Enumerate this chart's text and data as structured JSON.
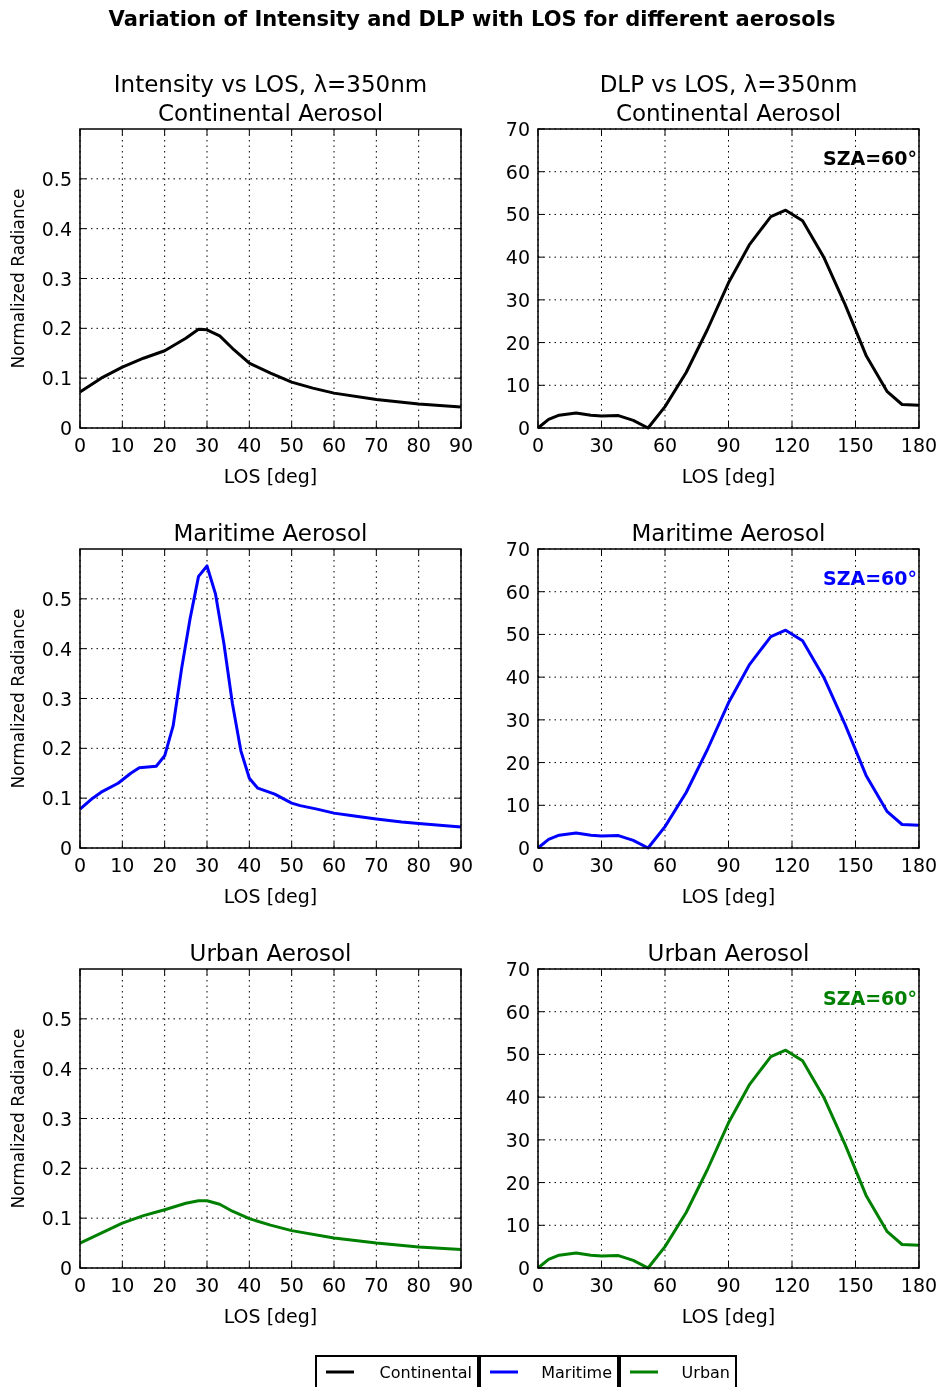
{
  "chart_data": [
    {
      "type": "line",
      "title": "Intensity vs LOS, λ=350nm",
      "subtitle": "Continental Aerosol",
      "xlabel": "LOS [deg]",
      "ylabel": "Normalized Radiance",
      "annotations": [
        "Variation of Intensity and DLP with LOS for different aerosols"
      ],
      "xlim": [
        0,
        90
      ],
      "xticks": [
        0,
        10,
        20,
        30,
        40,
        50,
        60,
        70,
        80,
        90
      ],
      "ylim": [
        0,
        0.6
      ],
      "yticks": [
        0,
        0.1,
        0.2,
        0.3,
        0.4,
        0.5
      ],
      "grid": true,
      "legend": "bottom",
      "series": [
        {
          "name": "Continental",
          "color": "#000000",
          "x": [
            0,
            5,
            10,
            15,
            20,
            25,
            28,
            30,
            33,
            36,
            40,
            45,
            50,
            55,
            60,
            70,
            80,
            90
          ],
          "values": [
            0.072,
            0.1,
            0.122,
            0.14,
            0.155,
            0.18,
            0.198,
            0.197,
            0.185,
            0.16,
            0.13,
            0.11,
            0.092,
            0.08,
            0.07,
            0.057,
            0.048,
            0.042
          ]
        }
      ]
    },
    {
      "type": "line",
      "title": "DLP vs LOS, λ=350nm",
      "subtitle": "Continental Aerosol",
      "xlabel": "LOS [deg]",
      "annotations": [
        "SZA=60°"
      ],
      "xlim": [
        0,
        180
      ],
      "xticks": [
        0,
        30,
        60,
        90,
        120,
        150,
        180
      ],
      "ylim": [
        0,
        70
      ],
      "yticks": [
        0,
        10,
        20,
        30,
        40,
        50,
        60,
        70
      ],
      "grid": true,
      "series": [
        {
          "color": "#000000",
          "x": [
            0,
            5,
            10,
            18,
            25,
            30,
            38,
            45,
            52,
            60,
            70,
            80,
            90,
            100,
            110,
            117,
            125,
            135,
            145,
            155,
            165,
            172,
            180
          ],
          "values": [
            0,
            2,
            3,
            3.5,
            3,
            2.8,
            2.9,
            1.8,
            0,
            5,
            13,
            23,
            34,
            43,
            49.5,
            51,
            48.5,
            40,
            29,
            17,
            8.5,
            5.5,
            5.3
          ]
        }
      ]
    },
    {
      "type": "line",
      "title": "Maritime Aerosol",
      "xlabel": "LOS [deg]",
      "ylabel": "Normalized Radiance",
      "xlim": [
        0,
        90
      ],
      "xticks": [
        0,
        10,
        20,
        30,
        40,
        50,
        60,
        70,
        80,
        90
      ],
      "ylim": [
        0,
        0.6
      ],
      "yticks": [
        0,
        0.1,
        0.2,
        0.3,
        0.4,
        0.5
      ],
      "grid": true,
      "legend": "bottom",
      "series": [
        {
          "name": "Maritime",
          "color": "#0000ff",
          "x": [
            0,
            3,
            5,
            9,
            12,
            14,
            18,
            20,
            22,
            24,
            26,
            28,
            30,
            32,
            34,
            36,
            38,
            40,
            42,
            46,
            50,
            52,
            56,
            60,
            64,
            70,
            76,
            80,
            90
          ],
          "values": [
            0.078,
            0.1,
            0.112,
            0.13,
            0.15,
            0.161,
            0.164,
            0.185,
            0.245,
            0.36,
            0.46,
            0.545,
            0.566,
            0.51,
            0.41,
            0.29,
            0.195,
            0.14,
            0.12,
            0.108,
            0.09,
            0.085,
            0.078,
            0.07,
            0.065,
            0.058,
            0.052,
            0.049,
            0.042
          ]
        }
      ]
    },
    {
      "type": "line",
      "title": "Maritime Aerosol",
      "xlabel": "LOS [deg]",
      "annotations": [
        "SZA=60°"
      ],
      "xlim": [
        0,
        180
      ],
      "xticks": [
        0,
        30,
        60,
        90,
        120,
        150,
        180
      ],
      "ylim": [
        0,
        70
      ],
      "yticks": [
        0,
        10,
        20,
        30,
        40,
        50,
        60,
        70
      ],
      "grid": true,
      "series": [
        {
          "color": "#0000ff",
          "x": [
            0,
            5,
            10,
            18,
            25,
            30,
            38,
            45,
            52,
            60,
            70,
            80,
            90,
            100,
            110,
            117,
            125,
            135,
            145,
            155,
            165,
            172,
            180
          ],
          "values": [
            0,
            2,
            3,
            3.5,
            3,
            2.8,
            2.9,
            1.8,
            0,
            5,
            13,
            23,
            34,
            43,
            49.5,
            51,
            48.5,
            40,
            29,
            17,
            8.5,
            5.5,
            5.3
          ]
        }
      ]
    },
    {
      "type": "line",
      "title": "Urban Aerosol",
      "xlabel": "LOS [deg]",
      "ylabel": "Normalized Radiance",
      "xlim": [
        0,
        90
      ],
      "xticks": [
        0,
        10,
        20,
        30,
        40,
        50,
        60,
        70,
        80,
        90
      ],
      "ylim": [
        0,
        0.6
      ],
      "yticks": [
        0,
        0.1,
        0.2,
        0.3,
        0.4,
        0.5
      ],
      "grid": true,
      "legend": "bottom",
      "series": [
        {
          "name": "Urban",
          "color": "#008000",
          "x": [
            0,
            5,
            10,
            15,
            20,
            25,
            28,
            30,
            33,
            36,
            40,
            45,
            50,
            60,
            70,
            80,
            90
          ],
          "values": [
            0.05,
            0.07,
            0.09,
            0.105,
            0.117,
            0.13,
            0.135,
            0.135,
            0.128,
            0.114,
            0.099,
            0.086,
            0.075,
            0.06,
            0.05,
            0.042,
            0.037
          ]
        }
      ]
    },
    {
      "type": "line",
      "title": "Urban Aerosol",
      "xlabel": "LOS [deg]",
      "annotations": [
        "SZA=60°"
      ],
      "xlim": [
        0,
        180
      ],
      "xticks": [
        0,
        30,
        60,
        90,
        120,
        150,
        180
      ],
      "ylim": [
        0,
        70
      ],
      "yticks": [
        0,
        10,
        20,
        30,
        40,
        50,
        60,
        70
      ],
      "grid": true,
      "series": [
        {
          "color": "#008000",
          "x": [
            0,
            5,
            10,
            18,
            25,
            30,
            38,
            45,
            52,
            60,
            70,
            80,
            90,
            100,
            110,
            117,
            125,
            135,
            145,
            155,
            165,
            172,
            180
          ],
          "values": [
            0,
            2,
            3,
            3.5,
            3,
            2.8,
            2.9,
            1.8,
            0,
            5,
            13,
            23,
            34,
            43,
            49.5,
            51,
            48.5,
            40,
            29,
            17,
            8.5,
            5.5,
            5.3
          ]
        }
      ]
    }
  ]
}
